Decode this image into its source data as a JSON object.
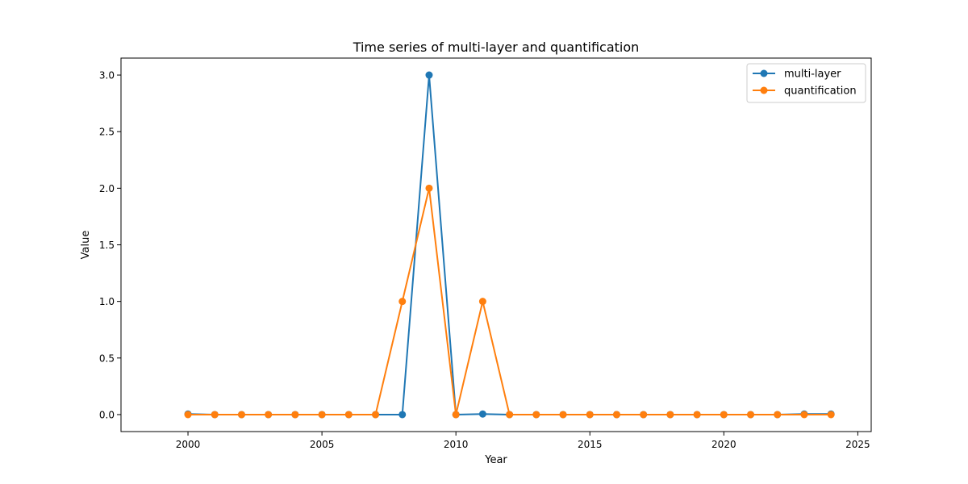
{
  "chart_data": {
    "type": "line",
    "title": "Time series of multi-layer and quantification",
    "xlabel": "Year",
    "ylabel": "Value",
    "xlim": [
      1997.5,
      2025.5
    ],
    "ylim": [
      -0.15,
      3.15
    ],
    "xticks": [
      2000,
      2005,
      2010,
      2015,
      2020,
      2025
    ],
    "xtick_labels": [
      "2000",
      "2005",
      "2010",
      "2015",
      "2020",
      "2025"
    ],
    "yticks": [
      0.0,
      0.5,
      1.0,
      1.5,
      2.0,
      2.5,
      3.0
    ],
    "ytick_labels": [
      "0.0",
      "0.5",
      "1.0",
      "1.5",
      "2.0",
      "2.5",
      "3.0"
    ],
    "grid": false,
    "legend_position": "upper right",
    "x": [
      2000,
      2001,
      2002,
      2003,
      2004,
      2005,
      2006,
      2007,
      2008,
      2009,
      2010,
      2011,
      2012,
      2013,
      2014,
      2015,
      2016,
      2017,
      2018,
      2019,
      2020,
      2021,
      2022,
      2023,
      2024
    ],
    "series": [
      {
        "name": "multi-layer",
        "color": "#1f77b4",
        "values": [
          0.005,
          0.0,
          0.0,
          0.0,
          0.0,
          0.0,
          0.0,
          0.0,
          0.0,
          3.0,
          0.0,
          0.005,
          0.0,
          0.0,
          0.0,
          0.0,
          0.0,
          0.0,
          0.0,
          0.0,
          0.0,
          0.0,
          0.0,
          0.005,
          0.005
        ]
      },
      {
        "name": "quantification",
        "color": "#ff7f0e",
        "values": [
          0.0,
          0.0,
          0.0,
          0.0,
          0.0,
          0.0,
          0.0,
          0.0,
          1.0,
          2.0,
          0.0,
          1.0,
          0.0,
          0.0,
          0.0,
          0.0,
          0.0,
          0.0,
          0.0,
          0.0,
          0.0,
          0.0,
          0.0,
          0.0,
          0.0
        ]
      }
    ]
  }
}
